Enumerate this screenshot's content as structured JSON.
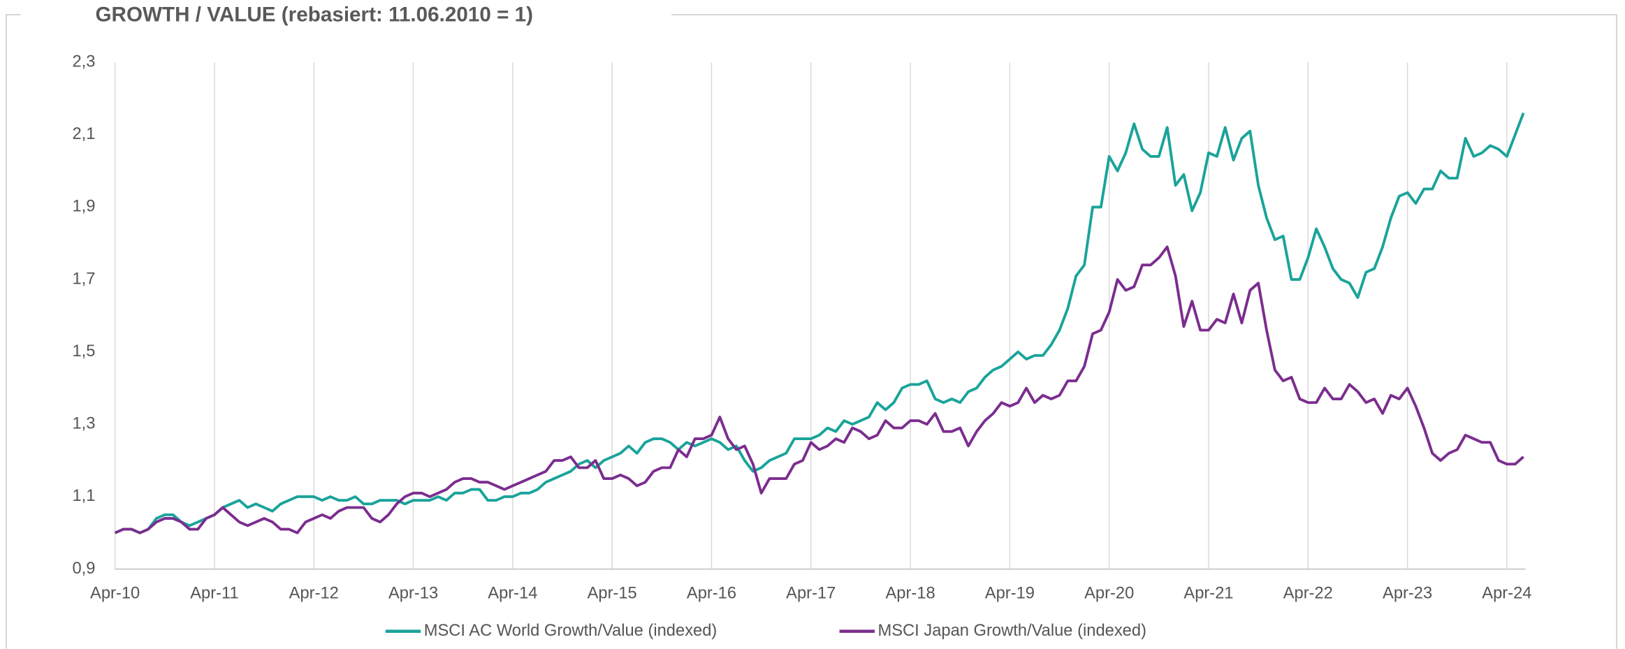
{
  "chart_data": {
    "type": "line",
    "title": "GROWTH / VALUE (rebasiert: 11.06.2010 = 1)",
    "x": [
      "2010-04",
      "2010-05",
      "2010-06",
      "2010-07",
      "2010-08",
      "2010-09",
      "2010-10",
      "2010-11",
      "2010-12",
      "2011-01",
      "2011-02",
      "2011-03",
      "2011-04",
      "2011-05",
      "2011-06",
      "2011-07",
      "2011-08",
      "2011-09",
      "2011-10",
      "2011-11",
      "2011-12",
      "2012-01",
      "2012-02",
      "2012-03",
      "2012-04",
      "2012-05",
      "2012-06",
      "2012-07",
      "2012-08",
      "2012-09",
      "2012-10",
      "2012-11",
      "2012-12",
      "2013-01",
      "2013-02",
      "2013-03",
      "2013-04",
      "2013-05",
      "2013-06",
      "2013-07",
      "2013-08",
      "2013-09",
      "2013-10",
      "2013-11",
      "2013-12",
      "2014-01",
      "2014-02",
      "2014-03",
      "2014-04",
      "2014-05",
      "2014-06",
      "2014-07",
      "2014-08",
      "2014-09",
      "2014-10",
      "2014-11",
      "2014-12",
      "2015-01",
      "2015-02",
      "2015-03",
      "2015-04",
      "2015-05",
      "2015-06",
      "2015-07",
      "2015-08",
      "2015-09",
      "2015-10",
      "2015-11",
      "2015-12",
      "2016-01",
      "2016-02",
      "2016-03",
      "2016-04",
      "2016-05",
      "2016-06",
      "2016-07",
      "2016-08",
      "2016-09",
      "2016-10",
      "2016-11",
      "2016-12",
      "2017-01",
      "2017-02",
      "2017-03",
      "2017-04",
      "2017-05",
      "2017-06",
      "2017-07",
      "2017-08",
      "2017-09",
      "2017-10",
      "2017-11",
      "2017-12",
      "2018-01",
      "2018-02",
      "2018-03",
      "2018-04",
      "2018-05",
      "2018-06",
      "2018-07",
      "2018-08",
      "2018-09",
      "2018-10",
      "2018-11",
      "2018-12",
      "2019-01",
      "2019-02",
      "2019-03",
      "2019-04",
      "2019-05",
      "2019-06",
      "2019-07",
      "2019-08",
      "2019-09",
      "2019-10",
      "2019-11",
      "2019-12",
      "2020-01",
      "2020-02",
      "2020-03",
      "2020-04",
      "2020-05",
      "2020-06",
      "2020-07",
      "2020-08",
      "2020-09",
      "2020-10",
      "2020-11",
      "2020-12",
      "2021-01",
      "2021-02",
      "2021-03",
      "2021-04",
      "2021-05",
      "2021-06",
      "2021-07",
      "2021-08",
      "2021-09",
      "2021-10",
      "2021-11",
      "2021-12",
      "2022-01",
      "2022-02",
      "2022-03",
      "2022-04",
      "2022-05",
      "2022-06",
      "2022-07",
      "2022-08",
      "2022-09",
      "2022-10",
      "2022-11",
      "2022-12",
      "2023-01",
      "2023-02",
      "2023-03",
      "2023-04",
      "2023-05",
      "2023-06",
      "2023-07",
      "2023-08",
      "2023-09",
      "2023-10",
      "2023-11",
      "2023-12",
      "2024-01",
      "2024-02",
      "2024-03",
      "2024-04",
      "2024-05",
      "2024-06"
    ],
    "series": [
      {
        "name": "MSCI AC World Growth/Value (indexed)",
        "color": "#1aa39a",
        "values": [
          1.0,
          1.01,
          1.01,
          1.0,
          1.01,
          1.04,
          1.05,
          1.05,
          1.03,
          1.02,
          1.03,
          1.04,
          1.05,
          1.07,
          1.08,
          1.09,
          1.07,
          1.08,
          1.07,
          1.06,
          1.08,
          1.09,
          1.1,
          1.1,
          1.1,
          1.09,
          1.1,
          1.09,
          1.09,
          1.1,
          1.08,
          1.08,
          1.09,
          1.09,
          1.09,
          1.08,
          1.09,
          1.09,
          1.09,
          1.1,
          1.09,
          1.11,
          1.11,
          1.12,
          1.12,
          1.09,
          1.09,
          1.1,
          1.1,
          1.11,
          1.11,
          1.12,
          1.14,
          1.15,
          1.16,
          1.17,
          1.19,
          1.2,
          1.18,
          1.2,
          1.21,
          1.22,
          1.24,
          1.22,
          1.25,
          1.26,
          1.26,
          1.25,
          1.23,
          1.25,
          1.24,
          1.25,
          1.26,
          1.25,
          1.23,
          1.24,
          1.2,
          1.17,
          1.18,
          1.2,
          1.21,
          1.22,
          1.26,
          1.26,
          1.26,
          1.27,
          1.29,
          1.28,
          1.31,
          1.3,
          1.31,
          1.32,
          1.36,
          1.34,
          1.36,
          1.4,
          1.41,
          1.41,
          1.42,
          1.37,
          1.36,
          1.37,
          1.36,
          1.39,
          1.4,
          1.43,
          1.45,
          1.46,
          1.48,
          1.5,
          1.48,
          1.49,
          1.49,
          1.52,
          1.56,
          1.62,
          1.71,
          1.74,
          1.9,
          1.9,
          2.04,
          2.0,
          2.05,
          2.13,
          2.06,
          2.04,
          2.04,
          2.12,
          1.96,
          1.99,
          1.89,
          1.94,
          2.05,
          2.04,
          2.12,
          2.03,
          2.09,
          2.11,
          1.96,
          1.87,
          1.81,
          1.82,
          1.7,
          1.7,
          1.76,
          1.84,
          1.79,
          1.73,
          1.7,
          1.69,
          1.65,
          1.72,
          1.73,
          1.79,
          1.87,
          1.93,
          1.94,
          1.91,
          1.95,
          1.95,
          2.0,
          1.98,
          1.98,
          2.09,
          2.04,
          2.05,
          2.07,
          2.06,
          2.04,
          2.1,
          2.16
        ]
      },
      {
        "name": "MSCI Japan Growth/Value (indexed)",
        "color": "#7b2d8e",
        "values": [
          1.0,
          1.01,
          1.01,
          1.0,
          1.01,
          1.03,
          1.04,
          1.04,
          1.03,
          1.01,
          1.01,
          1.04,
          1.05,
          1.07,
          1.05,
          1.03,
          1.02,
          1.03,
          1.04,
          1.03,
          1.01,
          1.01,
          1.0,
          1.03,
          1.04,
          1.05,
          1.04,
          1.06,
          1.07,
          1.07,
          1.07,
          1.04,
          1.03,
          1.05,
          1.08,
          1.1,
          1.11,
          1.11,
          1.1,
          1.11,
          1.12,
          1.14,
          1.15,
          1.15,
          1.14,
          1.14,
          1.13,
          1.12,
          1.13,
          1.14,
          1.15,
          1.16,
          1.17,
          1.2,
          1.2,
          1.21,
          1.18,
          1.18,
          1.2,
          1.15,
          1.15,
          1.16,
          1.15,
          1.13,
          1.14,
          1.17,
          1.18,
          1.18,
          1.23,
          1.21,
          1.26,
          1.26,
          1.27,
          1.32,
          1.26,
          1.23,
          1.24,
          1.19,
          1.11,
          1.15,
          1.15,
          1.15,
          1.19,
          1.2,
          1.25,
          1.23,
          1.24,
          1.26,
          1.25,
          1.29,
          1.28,
          1.26,
          1.27,
          1.31,
          1.29,
          1.29,
          1.31,
          1.31,
          1.3,
          1.33,
          1.28,
          1.28,
          1.29,
          1.24,
          1.28,
          1.31,
          1.33,
          1.36,
          1.35,
          1.36,
          1.4,
          1.36,
          1.38,
          1.37,
          1.38,
          1.42,
          1.42,
          1.46,
          1.55,
          1.56,
          1.61,
          1.7,
          1.67,
          1.68,
          1.74,
          1.74,
          1.76,
          1.79,
          1.71,
          1.57,
          1.64,
          1.56,
          1.56,
          1.59,
          1.58,
          1.66,
          1.58,
          1.67,
          1.69,
          1.56,
          1.45,
          1.42,
          1.43,
          1.37,
          1.36,
          1.36,
          1.4,
          1.37,
          1.37,
          1.41,
          1.39,
          1.36,
          1.37,
          1.33,
          1.38,
          1.37,
          1.4,
          1.35,
          1.29,
          1.22,
          1.2,
          1.22,
          1.23,
          1.27,
          1.26,
          1.25,
          1.25,
          1.2,
          1.19,
          1.19,
          1.21
        ]
      }
    ],
    "xlim": [
      "2010-04",
      "2024-06"
    ],
    "xticks": [
      {
        "value": "2010-04",
        "label": "Apr-10"
      },
      {
        "value": "2011-04",
        "label": "Apr-11"
      },
      {
        "value": "2012-04",
        "label": "Apr-12"
      },
      {
        "value": "2013-04",
        "label": "Apr-13"
      },
      {
        "value": "2014-04",
        "label": "Apr-14"
      },
      {
        "value": "2015-04",
        "label": "Apr-15"
      },
      {
        "value": "2016-04",
        "label": "Apr-16"
      },
      {
        "value": "2017-04",
        "label": "Apr-17"
      },
      {
        "value": "2018-04",
        "label": "Apr-18"
      },
      {
        "value": "2019-04",
        "label": "Apr-19"
      },
      {
        "value": "2020-04",
        "label": "Apr-20"
      },
      {
        "value": "2021-04",
        "label": "Apr-21"
      },
      {
        "value": "2022-04",
        "label": "Apr-22"
      },
      {
        "value": "2023-04",
        "label": "Apr-23"
      },
      {
        "value": "2024-04",
        "label": "Apr-24"
      }
    ],
    "ylim": [
      0.9,
      2.3
    ],
    "yticks": [
      {
        "value": 0.9,
        "label": "0,9"
      },
      {
        "value": 1.1,
        "label": "1,1"
      },
      {
        "value": 1.3,
        "label": "1,3"
      },
      {
        "value": 1.5,
        "label": "1,5"
      },
      {
        "value": 1.7,
        "label": "1,7"
      },
      {
        "value": 1.9,
        "label": "1,9"
      },
      {
        "value": 2.1,
        "label": "2,1"
      },
      {
        "value": 2.3,
        "label": "2,3"
      }
    ],
    "grid": "x",
    "legend": "bottom"
  }
}
